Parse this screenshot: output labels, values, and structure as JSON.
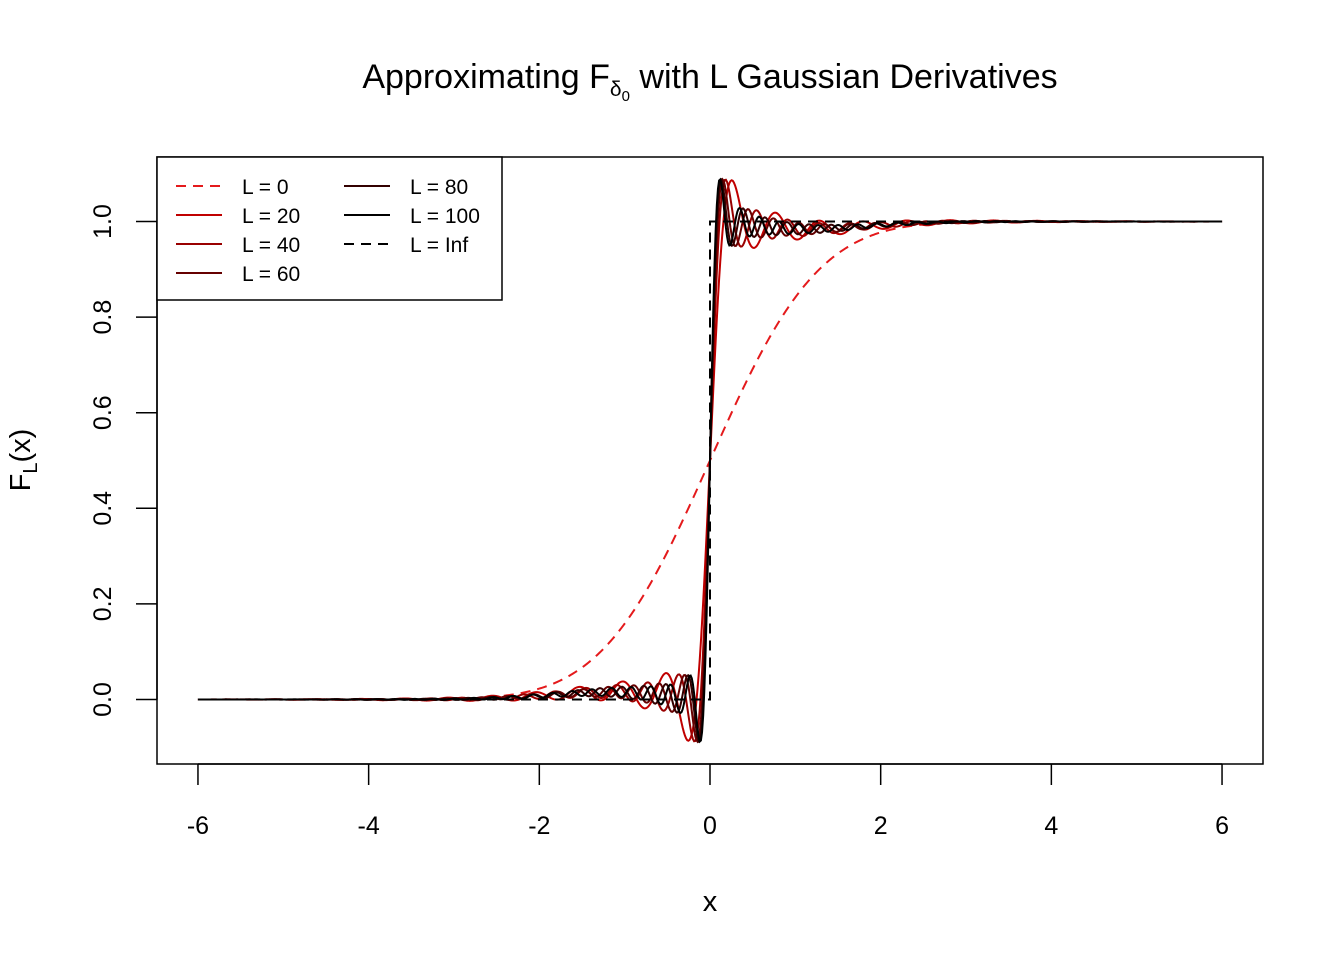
{
  "chart_data": {
    "type": "line",
    "title": {
      "prefix": "Approximating F",
      "sub": "δ",
      "subsub": "0",
      "suffix": " with L Gaussian Derivatives"
    },
    "xlabel": "x",
    "ylabel": {
      "main": "F",
      "sub": "L",
      "tail": "(x)"
    },
    "xlim": [
      -6.48,
      6.48
    ],
    "ylim": [
      -0.135,
      1.135
    ],
    "x_ticks": [
      -6,
      -4,
      -2,
      0,
      2,
      4,
      6
    ],
    "y_ticks": [
      0.0,
      0.2,
      0.4,
      0.6,
      0.8,
      1.0
    ],
    "x_tick_labels": [
      "-6",
      "-4",
      "-2",
      "0",
      "2",
      "4",
      "6"
    ],
    "y_tick_labels": [
      "0.0",
      "0.2",
      "0.4",
      "0.6",
      "0.8",
      "1.0"
    ],
    "grid": false,
    "legend_position": "top-left",
    "series": [
      {
        "name": "L = 0",
        "L": 0,
        "color": "#e41a1c",
        "dash": "dashed"
      },
      {
        "name": "L = 20",
        "L": 20,
        "color": "#c00000",
        "dash": "solid"
      },
      {
        "name": "L = 40",
        "L": 40,
        "color": "#990000",
        "dash": "solid"
      },
      {
        "name": "L = 60",
        "L": 60,
        "color": "#660000",
        "dash": "solid"
      },
      {
        "name": "L = 80",
        "L": 80,
        "color": "#330000",
        "dash": "solid"
      },
      {
        "name": "L = 100",
        "L": 100,
        "color": "#000000",
        "dash": "solid"
      },
      {
        "name": "L = Inf",
        "L": "Inf",
        "color": "#000000",
        "dash": "dashed"
      }
    ],
    "x_range": [
      -6,
      6
    ]
  }
}
